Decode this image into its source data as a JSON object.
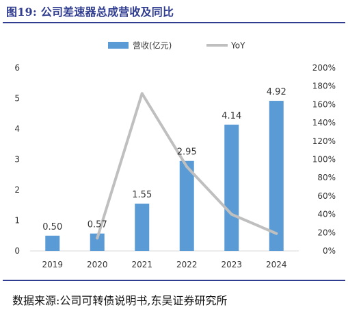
{
  "figure": {
    "title": "图19:  公司差速器总成营收及同比",
    "source": "数据来源:公司可转债说明书,东吴证券研究所"
  },
  "chart_data": {
    "type": "bar",
    "categories": [
      "2019",
      "2020",
      "2021",
      "2022",
      "2023",
      "2024"
    ],
    "series": [
      {
        "name": "营收(亿元)",
        "type": "bar",
        "axis": "left",
        "values": [
          0.5,
          0.57,
          1.55,
          2.95,
          4.14,
          4.92
        ],
        "data_labels": [
          "0.50",
          "0.57",
          "1.55",
          "2.95",
          "4.14",
          "4.92"
        ],
        "color": "#5b9bd5"
      },
      {
        "name": "YoY",
        "type": "line",
        "axis": "right",
        "values": [
          null,
          14,
          172,
          92,
          40,
          19
        ],
        "color": "#bfbfbf"
      }
    ],
    "y_left": {
      "ylim": [
        0,
        6
      ],
      "ticks": [
        "0",
        "1",
        "2",
        "3",
        "4",
        "5",
        "6"
      ]
    },
    "y_right": {
      "ylim": [
        0,
        200
      ],
      "ticks": [
        "0%",
        "20%",
        "40%",
        "60%",
        "80%",
        "100%",
        "120%",
        "140%",
        "160%",
        "180%",
        "200%"
      ]
    },
    "legend": "top",
    "grid": false
  }
}
